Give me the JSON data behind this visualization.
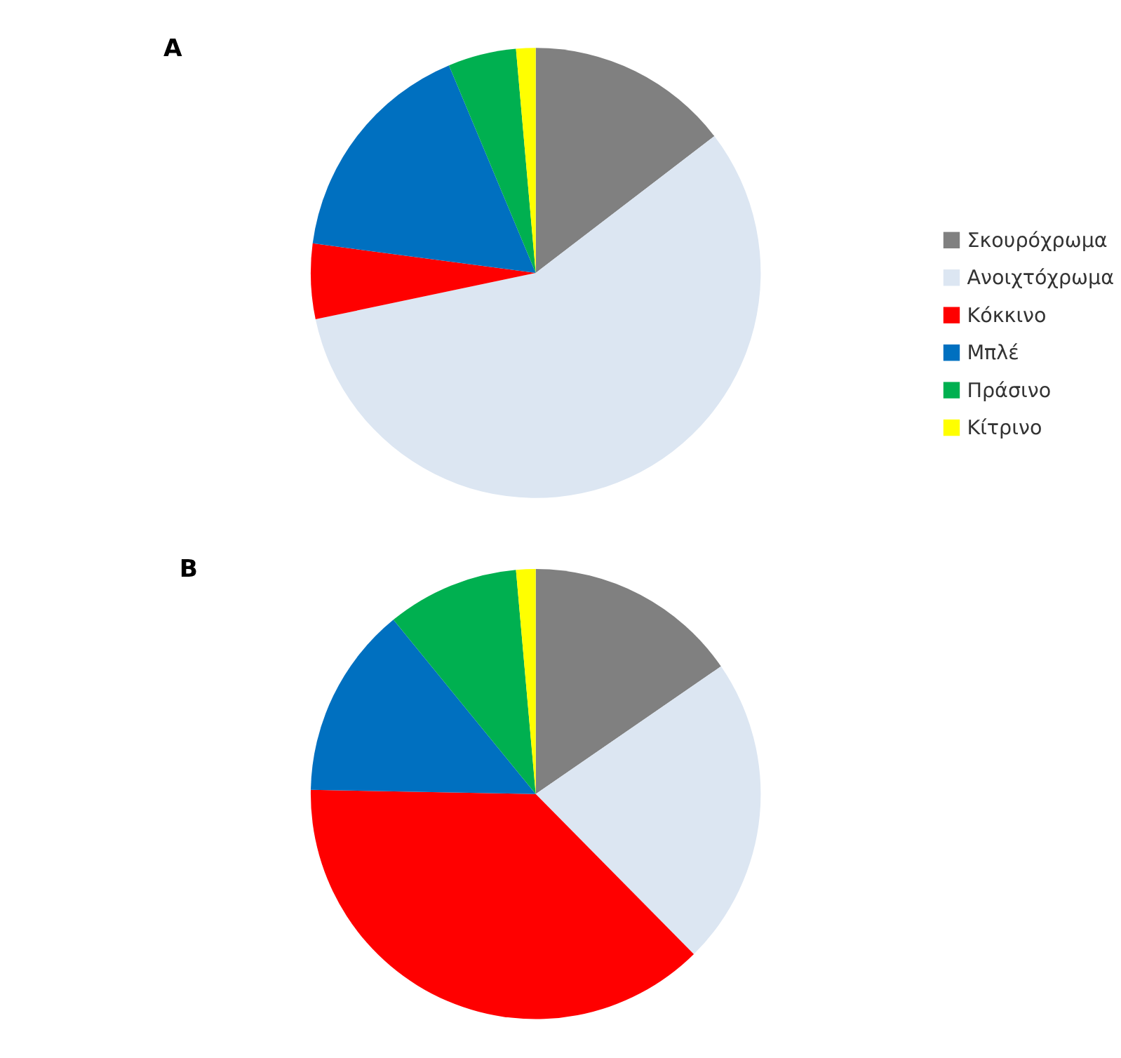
{
  "chart_data": [
    {
      "type": "pie",
      "title": "A",
      "categories": [
        "Σκουρόχρωμα",
        "Ανοιχτόχρωμα",
        "Κόκκινο",
        "Μπλέ",
        "Πράσινο",
        "Κίτρινο"
      ],
      "values": [
        14.6,
        57.1,
        5.4,
        16.6,
        4.9,
        1.4
      ],
      "colors": [
        "#808080",
        "#dce6f2",
        "#ff0000",
        "#0070c0",
        "#00b050",
        "#ffff00"
      ],
      "legend": "right"
    },
    {
      "type": "pie",
      "title": "B",
      "categories": [
        null,
        null,
        null,
        null,
        null,
        null
      ],
      "values": [
        15.4,
        22.2,
        37.7,
        13.8,
        9.5,
        1.4
      ],
      "colors": [
        "#808080",
        "#dce6f2",
        "#ff0000",
        "#0070c0",
        "#00b050",
        "#ffff00"
      ]
    }
  ]
}
